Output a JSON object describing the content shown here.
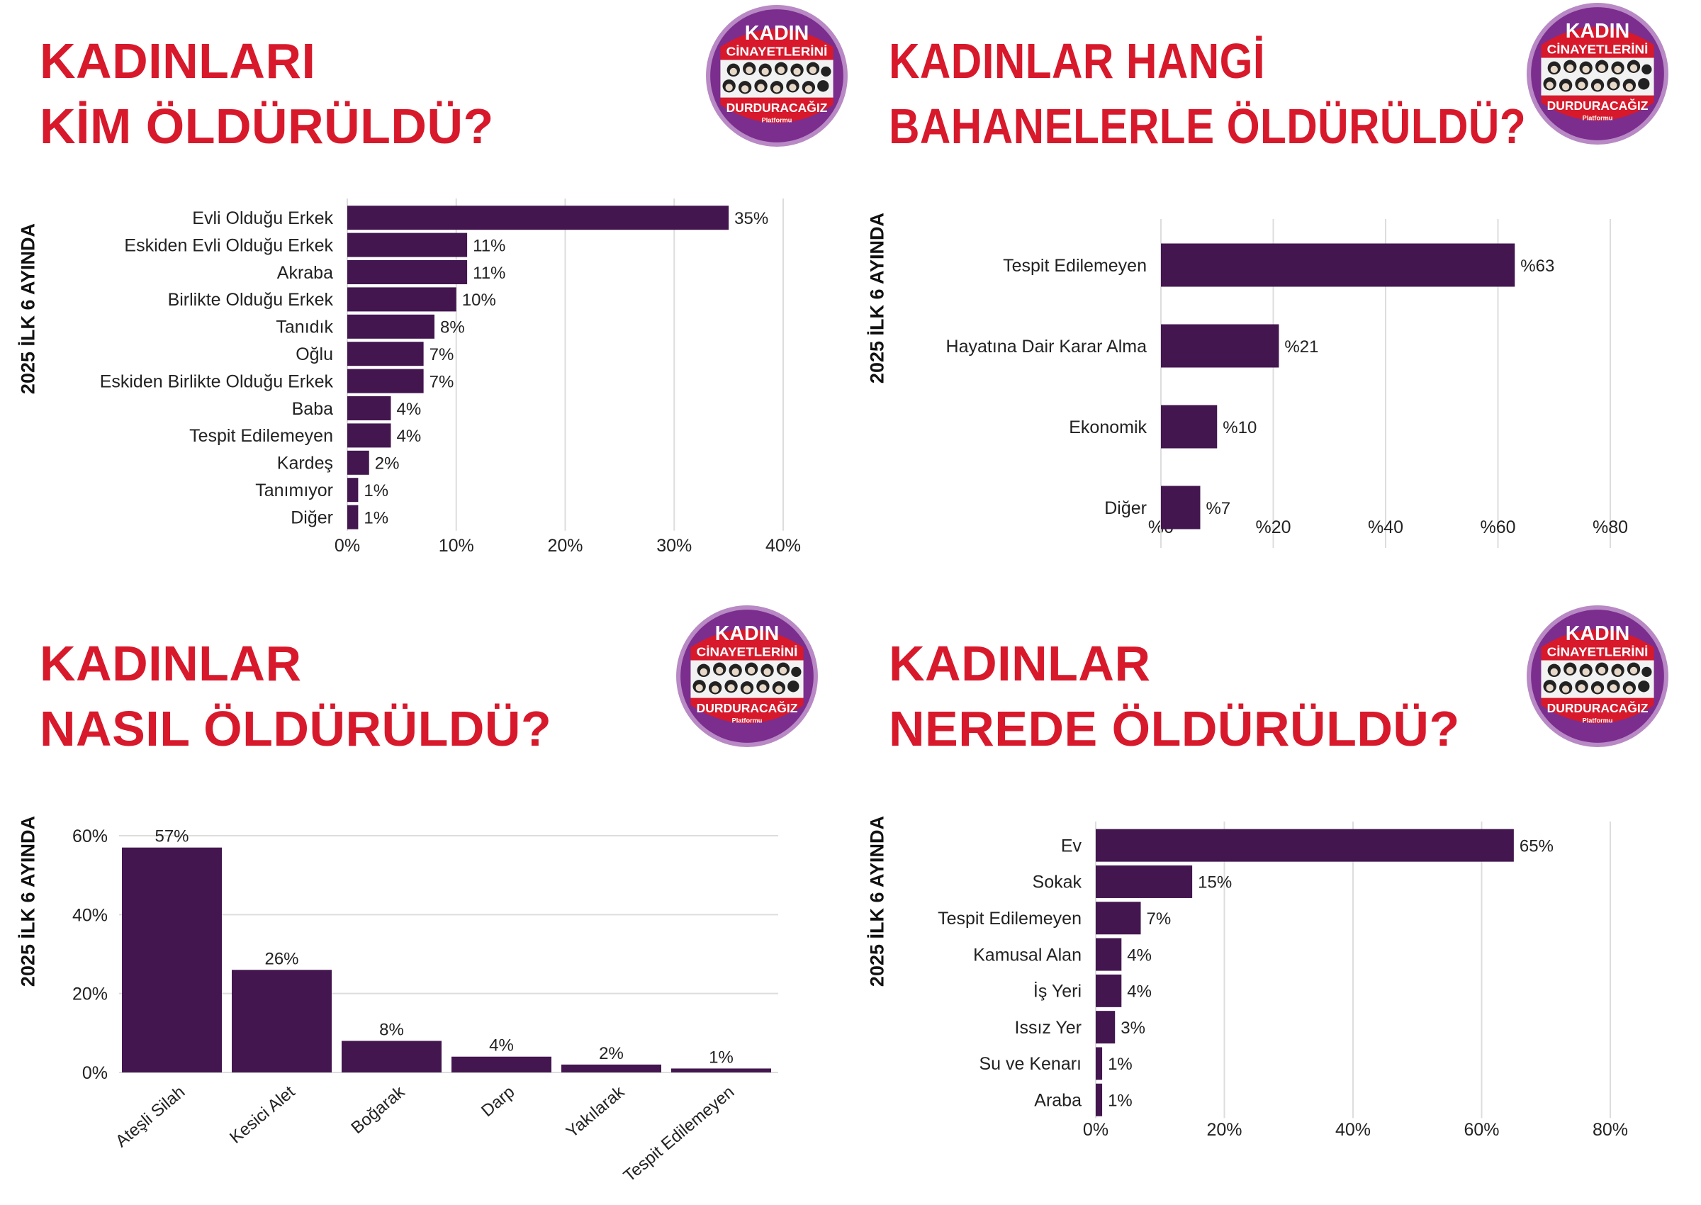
{
  "logo": {
    "line1": "KADIN",
    "line2": "CİNAYETLERİNİ",
    "line3": "DURDURACAĞIZ",
    "line4": "Platformu",
    "colors": {
      "ring": "#7b2e8e",
      "inner": "#d7192b"
    }
  },
  "colors": {
    "title": "#d7192b",
    "bar": "#43164f",
    "grid": "#dddddd"
  },
  "panels": [
    {
      "title1": "KADINLARI",
      "title2": "KİM ÖLDÜRÜLDÜ?",
      "ylabel": "2025 İLK 6 AYINDA"
    },
    {
      "title1": "KADINLAR HANGİ",
      "title2": "BAHANELERLE ÖLDÜRÜLDÜ?",
      "ylabel": "2025 İLK 6 AYINDA"
    },
    {
      "title1": "KADINLAR",
      "title2": "NASIL ÖLDÜRÜLDÜ?",
      "ylabel": "2025 İLK 6 AYINDA"
    },
    {
      "title1": "KADINLAR",
      "title2": "NEREDE ÖLDÜRÜLDÜ?",
      "ylabel": "2025 İLK 6 AYINDA"
    }
  ],
  "chart_data": [
    {
      "type": "bar",
      "orientation": "horizontal",
      "title": "KADINLARI KİM ÖLDÜRÜLDÜ?",
      "ylabel": "2025 İLK 6 AYINDA",
      "categories": [
        "Evli Olduğu Erkek",
        "Eskiden Evli Olduğu Erkek",
        "Akraba",
        "Birlikte Olduğu Erkek",
        "Tanıdık",
        "Oğlu",
        "Eskiden Birlikte Olduğu Erkek",
        "Baba",
        "Tespit Edilemeyen",
        "Kardeş",
        "Tanımıyor",
        "Diğer"
      ],
      "values": [
        35,
        11,
        11,
        10,
        8,
        7,
        7,
        4,
        4,
        2,
        1,
        1
      ],
      "data_labels": [
        "35%",
        "11%",
        "11%",
        "10%",
        "8%",
        "7%",
        "7%",
        "4%",
        "4%",
        "2%",
        "1%",
        "1%"
      ],
      "xlim": [
        0,
        40
      ],
      "ticks": [
        "0%",
        "10%",
        "20%",
        "30%",
        "40%"
      ],
      "grid": true
    },
    {
      "type": "bar",
      "orientation": "horizontal",
      "title": "KADINLAR HANGİ BAHANELERLE ÖLDÜRÜLDÜ?",
      "ylabel": "2025 İLK 6 AYINDA",
      "categories": [
        "Tespit Edilemeyen",
        "Hayatına Dair Karar Alma",
        "Ekonomik",
        "Diğer"
      ],
      "values": [
        63,
        21,
        10,
        7
      ],
      "data_labels": [
        "%63",
        "%21",
        "%10",
        "%7"
      ],
      "xlim": [
        0,
        80
      ],
      "ticks": [
        "%0",
        "%20",
        "%40",
        "%60",
        "%80"
      ],
      "grid": true
    },
    {
      "type": "bar",
      "orientation": "vertical",
      "title": "KADINLAR NASIL ÖLDÜRÜLDÜ?",
      "ylabel": "2025 İLK 6 AYINDA",
      "categories": [
        "Ateşli Silah",
        "Kesici Alet",
        "Boğarak",
        "Darp",
        "Yakılarak",
        "Tespit Edilemeyen"
      ],
      "values": [
        57,
        26,
        8,
        4,
        2,
        1
      ],
      "data_labels": [
        "57%",
        "26%",
        "8%",
        "4%",
        "2%",
        "1%"
      ],
      "ylim": [
        0,
        60
      ],
      "ticks": [
        "0%",
        "20%",
        "40%",
        "60%"
      ],
      "grid": true
    },
    {
      "type": "bar",
      "orientation": "horizontal",
      "title": "KADINLAR NEREDE ÖLDÜRÜLDÜ?",
      "ylabel": "2025 İLK 6 AYINDA",
      "categories": [
        "Ev",
        "Sokak",
        "Tespit Edilemeyen",
        "Kamusal Alan",
        "İş Yeri",
        "Issız Yer",
        "Su ve Kenarı",
        "Araba"
      ],
      "values": [
        65,
        15,
        7,
        4,
        4,
        3,
        1,
        1
      ],
      "data_labels": [
        "65%",
        "15%",
        "7%",
        "4%",
        "4%",
        "3%",
        "1%",
        "1%"
      ],
      "xlim": [
        0,
        80
      ],
      "ticks": [
        "0%",
        "20%",
        "40%",
        "60%",
        "80%"
      ],
      "grid": true
    }
  ]
}
